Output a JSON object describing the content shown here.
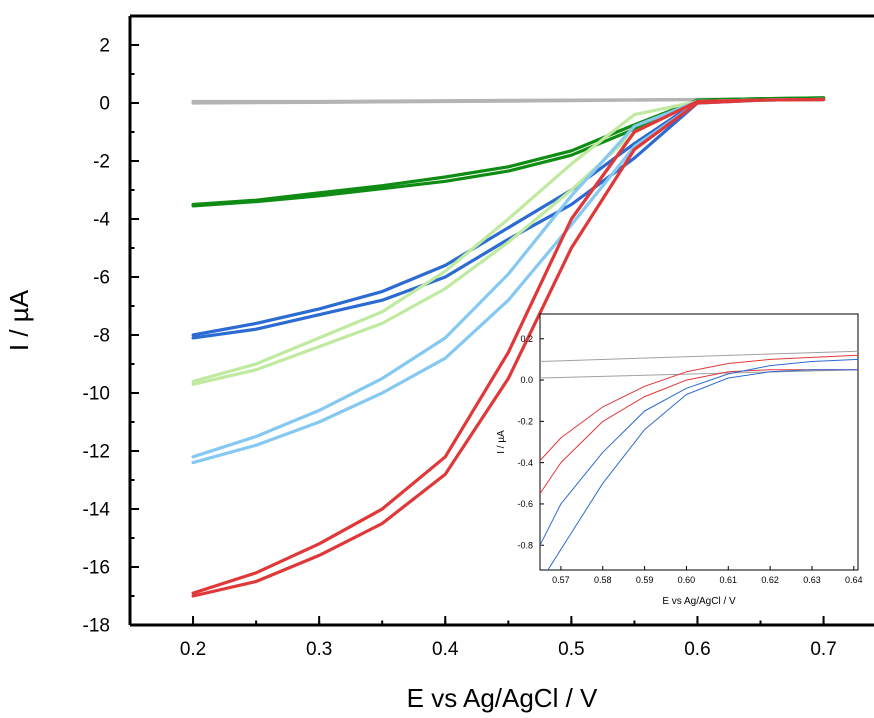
{
  "chart_data": [
    {
      "type": "line",
      "xlabel": "E vs Ag/AgCl / V",
      "ylabel": "I / µA",
      "xlim": [
        0.15,
        0.74
      ],
      "ylim": [
        -18,
        3
      ],
      "xticks": [
        "0.2",
        "0.3",
        "0.4",
        "0.5",
        "0.6",
        "0.7"
      ],
      "yticks": [
        "2",
        "0",
        "-2",
        "-4",
        "-6",
        "-8",
        "-10",
        "-12",
        "-14",
        "-16",
        "-18"
      ],
      "legend": "none",
      "grid": false,
      "series": [
        {
          "color": "#b4b4b4",
          "x": [
            0.2,
            0.3,
            0.4,
            0.5,
            0.6,
            0.7
          ],
          "y": [
            0,
            0.02,
            0.05,
            0.08,
            0.12,
            0.15
          ],
          "y_return": [
            0.05,
            0.05,
            0.08,
            0.1,
            0.12,
            0.15
          ]
        },
        {
          "color": "#0f8c14",
          "x": [
            0.2,
            0.25,
            0.3,
            0.35,
            0.4,
            0.45,
            0.5,
            0.55,
            0.6,
            0.65,
            0.7
          ],
          "y": [
            -3.55,
            -3.4,
            -3.2,
            -2.95,
            -2.7,
            -2.35,
            -1.8,
            -0.9,
            0.1,
            0.15,
            0.18
          ],
          "y_return": [
            -3.5,
            -3.35,
            -3.1,
            -2.85,
            -2.55,
            -2.2,
            -1.65,
            -0.75,
            0.1,
            0.15,
            0.18
          ]
        },
        {
          "color": "#2b6bd2",
          "x": [
            0.2,
            0.25,
            0.3,
            0.35,
            0.4,
            0.45,
            0.5,
            0.55,
            0.6,
            0.65,
            0.7
          ],
          "y": [
            -8.1,
            -7.8,
            -7.3,
            -6.8,
            -6.0,
            -4.7,
            -3.5,
            -1.9,
            0.0,
            0.1,
            0.12
          ],
          "y_return": [
            -8.0,
            -7.6,
            -7.1,
            -6.5,
            -5.6,
            -4.3,
            -3.0,
            -1.4,
            0.05,
            0.1,
            0.12
          ]
        },
        {
          "color": "#bfeaa0",
          "x": [
            0.2,
            0.25,
            0.3,
            0.35,
            0.4,
            0.45,
            0.5,
            0.55,
            0.6,
            0.65,
            0.7
          ],
          "y": [
            -9.7,
            -9.2,
            -8.4,
            -7.6,
            -6.4,
            -4.8,
            -3.0,
            -1.0,
            0.05,
            0.1,
            0.12
          ],
          "y_return": [
            -9.6,
            -9.0,
            -8.1,
            -7.2,
            -5.8,
            -4.0,
            -2.1,
            -0.4,
            0.05,
            0.1,
            0.12
          ]
        },
        {
          "color": "#85c8f2",
          "x": [
            0.2,
            0.25,
            0.3,
            0.35,
            0.4,
            0.45,
            0.5,
            0.55,
            0.6,
            0.65,
            0.7
          ],
          "y": [
            -12.4,
            -11.8,
            -11.0,
            -10.0,
            -8.8,
            -6.8,
            -4.2,
            -1.5,
            0.0,
            0.1,
            0.12
          ],
          "y_return": [
            -12.2,
            -11.5,
            -10.6,
            -9.5,
            -8.1,
            -5.9,
            -3.2,
            -0.8,
            0.05,
            0.1,
            0.12
          ]
        },
        {
          "color": "#e03838",
          "x": [
            0.2,
            0.25,
            0.3,
            0.35,
            0.4,
            0.45,
            0.5,
            0.55,
            0.6,
            0.65,
            0.7
          ],
          "y": [
            -17.0,
            -16.5,
            -15.6,
            -14.5,
            -12.8,
            -9.5,
            -5.0,
            -1.6,
            0.0,
            0.1,
            0.12
          ],
          "y_return": [
            -16.9,
            -16.2,
            -15.2,
            -14.0,
            -12.2,
            -8.6,
            -4.0,
            -1.0,
            0.05,
            0.1,
            0.12
          ]
        }
      ]
    },
    {
      "type": "line",
      "xlabel": "E vs Ag/AgCl / V",
      "ylabel": "I / µA",
      "xlim": [
        0.565,
        0.641
      ],
      "ylim": [
        -0.92,
        0.32
      ],
      "xticks": [
        "0.57",
        "0.58",
        "0.59",
        "0.60",
        "0.61",
        "0.62",
        "0.63",
        "0.64"
      ],
      "yticks": [
        "0.2",
        "0.0",
        "-0.2",
        "-0.4",
        "-0.6",
        "-0.8"
      ],
      "legend": "none",
      "grid": false,
      "series": [
        {
          "color": "#a0a0a0",
          "x": [
            0.565,
            0.641
          ],
          "y": [
            0.09,
            0.14
          ]
        },
        {
          "color": "#a0a0a0",
          "x": [
            0.565,
            0.641
          ],
          "y": [
            0.01,
            0.05
          ]
        },
        {
          "color": "#e03838",
          "x": [
            0.565,
            0.57,
            0.58,
            0.59,
            0.6,
            0.61,
            0.62,
            0.63,
            0.641
          ],
          "y": [
            -0.39,
            -0.28,
            -0.13,
            -0.03,
            0.04,
            0.08,
            0.1,
            0.11,
            0.12
          ]
        },
        {
          "color": "#e03838",
          "x": [
            0.565,
            0.57,
            0.58,
            0.59,
            0.6,
            0.61,
            0.62,
            0.63,
            0.641
          ],
          "y": [
            -0.55,
            -0.4,
            -0.2,
            -0.08,
            0.0,
            0.04,
            0.05,
            0.05,
            0.05
          ]
        },
        {
          "color": "#2b6bd2",
          "x": [
            0.565,
            0.57,
            0.58,
            0.59,
            0.6,
            0.61,
            0.62,
            0.63,
            0.641
          ],
          "y": [
            -0.8,
            -0.6,
            -0.35,
            -0.15,
            -0.04,
            0.03,
            0.07,
            0.09,
            0.1
          ]
        },
        {
          "color": "#2b6bd2",
          "x": [
            0.565,
            0.57,
            0.58,
            0.59,
            0.6,
            0.61,
            0.62,
            0.63,
            0.641
          ],
          "y": [
            -0.98,
            -0.82,
            -0.5,
            -0.24,
            -0.07,
            0.01,
            0.04,
            0.05,
            0.05
          ]
        }
      ]
    }
  ]
}
